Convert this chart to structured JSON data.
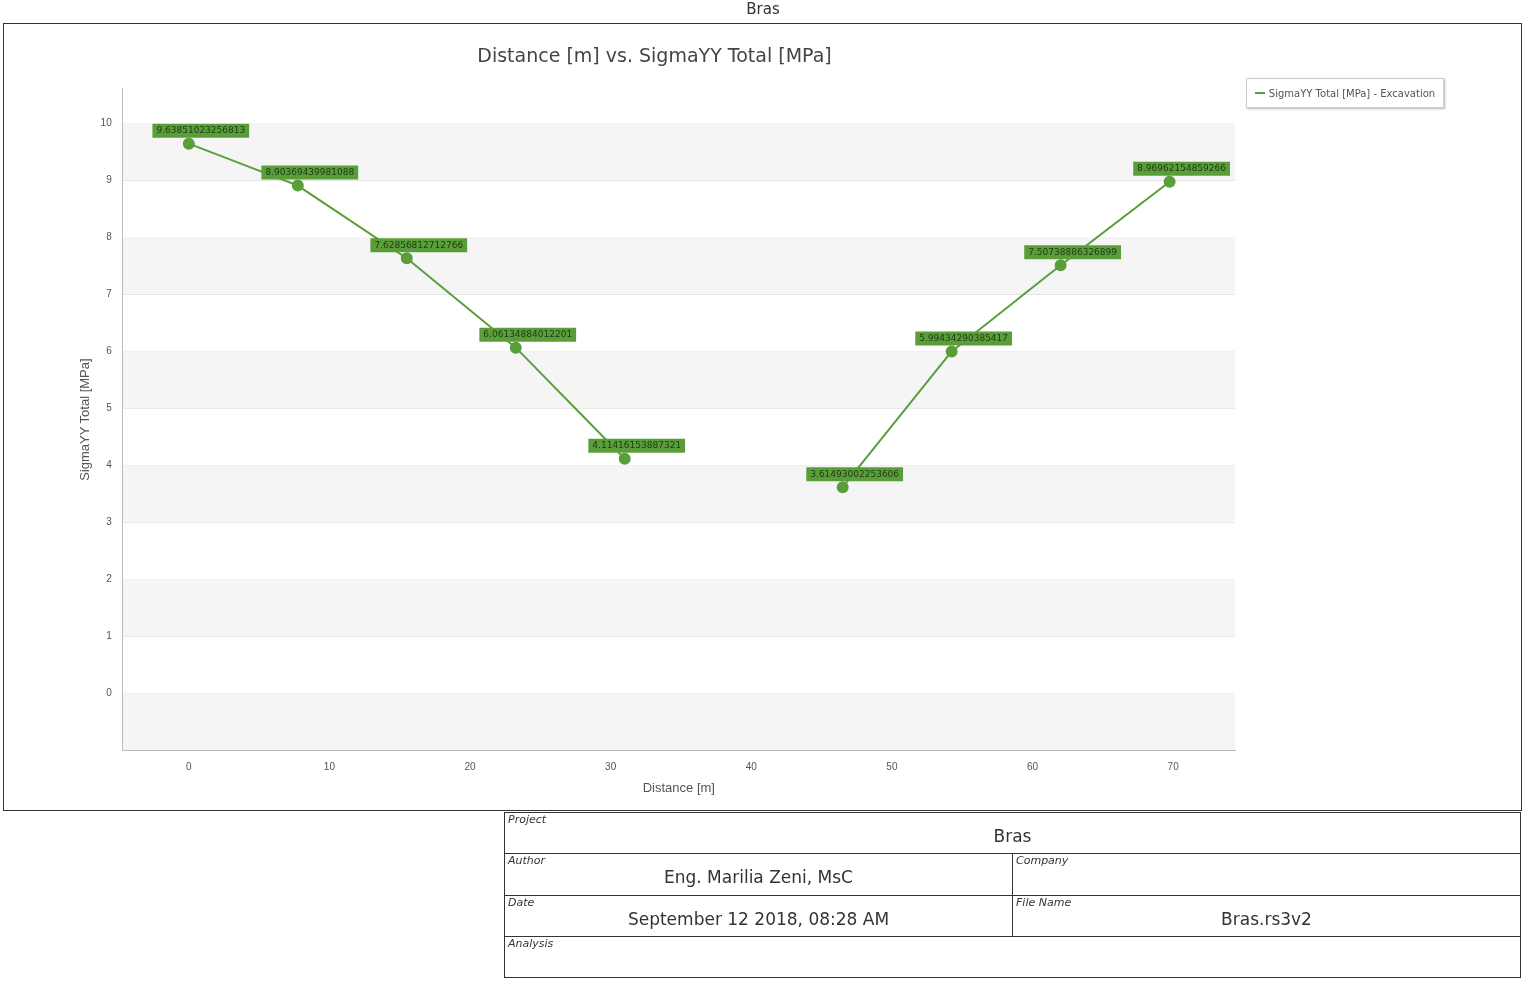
{
  "chart_data": {
    "type": "line",
    "title": "Distance [m] vs. SigmaYY Total [MPa]",
    "xlabel": "Distance [m]",
    "ylabel": "SigmaYY Total [MPa]",
    "x": [
      0,
      7.75,
      15.5,
      23.25,
      31,
      38.75,
      46.5,
      54.25,
      62,
      69.75
    ],
    "series": [
      {
        "name": "SigmaYY Total [MPa] - Excavation",
        "color": "#5a9e3a",
        "values": [
          9.63851023256813,
          8.90369439981088,
          7.62856812712766,
          6.06134884012201,
          4.11416153887321,
          null,
          3.61493002253606,
          5.99434290385417,
          7.50738886326899,
          8.96962154859266
        ]
      }
    ],
    "xlim": [
      -4.7,
      74.4
    ],
    "ylim": [
      -1,
      10.6
    ],
    "xticks": [
      0,
      10,
      20,
      30,
      40,
      50,
      60,
      70
    ],
    "yticks": [
      0,
      1,
      2,
      3,
      4,
      5,
      6,
      7,
      8,
      9,
      10
    ],
    "grid": "y",
    "legend": "top right",
    "marker": "circle",
    "line_style": "solid",
    "data_labels": true,
    "annotations": [
      "Bras",
      "Project",
      "Bras",
      "Author",
      "Eng. Marilia Zeni, MsC",
      "Company",
      "Date",
      "September 12 2018, 08:28 AM",
      "File Name",
      "Bras.rs3v2",
      "Analysis"
    ]
  }
}
